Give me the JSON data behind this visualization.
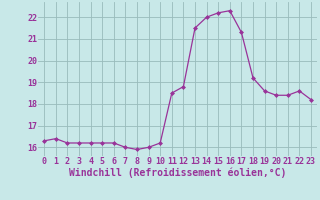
{
  "x": [
    0,
    1,
    2,
    3,
    4,
    5,
    6,
    7,
    8,
    9,
    10,
    11,
    12,
    13,
    14,
    15,
    16,
    17,
    18,
    19,
    20,
    21,
    22,
    23
  ],
  "y": [
    16.3,
    16.4,
    16.2,
    16.2,
    16.2,
    16.2,
    16.2,
    16.0,
    15.9,
    16.0,
    16.2,
    18.5,
    18.8,
    21.5,
    22.0,
    22.2,
    22.3,
    21.3,
    19.2,
    18.6,
    18.4,
    18.4,
    18.6,
    18.2
  ],
  "line_color": "#993399",
  "marker": "D",
  "marker_size": 2.0,
  "bg_color": "#c8e8e8",
  "grid_color": "#99bbbb",
  "xlabel": "Windchill (Refroidissement éolien,°C)",
  "xlabel_color": "#993399",
  "xlabel_fontsize": 7,
  "tick_color": "#993399",
  "tick_fontsize": 6,
  "ylim": [
    15.6,
    22.7
  ],
  "yticks": [
    16,
    17,
    18,
    19,
    20,
    21,
    22
  ],
  "xticks": [
    0,
    1,
    2,
    3,
    4,
    5,
    6,
    7,
    8,
    9,
    10,
    11,
    12,
    13,
    14,
    15,
    16,
    17,
    18,
    19,
    20,
    21,
    22,
    23
  ],
  "line_width": 0.9
}
